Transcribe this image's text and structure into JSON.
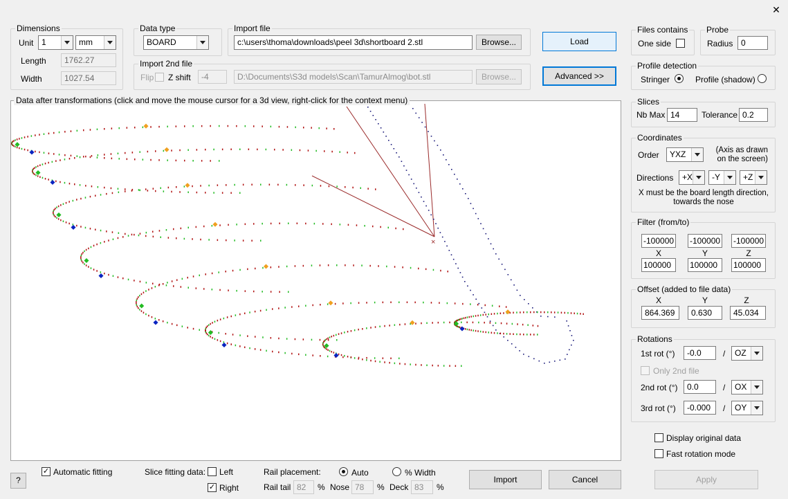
{
  "window": {
    "close_glyph": "✕"
  },
  "dimensions": {
    "legend": "Dimensions",
    "unit_label": "Unit",
    "unit_value": "1",
    "unit_mm": "mm",
    "length_label": "Length",
    "length_value": "1762.27",
    "width_label": "Width",
    "width_value": "1027.54"
  },
  "data_type": {
    "legend": "Data type",
    "value": "BOARD"
  },
  "import_file": {
    "legend": "Import file",
    "path": "c:\\users\\thoma\\downloads\\peel 3d\\shortboard 2.stl",
    "browse": "Browse..."
  },
  "import2": {
    "legend": "Import 2nd file",
    "flip_label": "Flip",
    "zshift_label": "Z shift",
    "zshift_value": "-4",
    "path": "D:\\Documents\\S3d models\\Scan\\TamurAlmog\\bot.stl",
    "browse": "Browse..."
  },
  "buttons": {
    "load": "Load",
    "advanced": "Advanced >>",
    "import": "Import",
    "cancel": "Cancel",
    "apply": "Apply",
    "help": "?"
  },
  "files_contains": {
    "legend": "Files contains",
    "one_side": "One side",
    "one_side_checked": false
  },
  "probe": {
    "legend": "Probe",
    "radius_label": "Radius",
    "radius_value": "0"
  },
  "profile_detection": {
    "legend": "Profile detection",
    "stringer": "Stringer",
    "shadow": "Profile (shadow)",
    "selected": "stringer"
  },
  "slices": {
    "legend": "Slices",
    "nbmax_label": "Nb Max",
    "nbmax_value": "14",
    "tolerance_label": "Tolerance",
    "tolerance_value": "0.2"
  },
  "coordinates": {
    "legend": "Coordinates",
    "order_label": "Order",
    "order_value": "YXZ",
    "axis_note": "(Axis as drawn\non the screen)",
    "directions_label": "Directions",
    "dir_x": "+X",
    "dir_y": "-Y",
    "dir_z": "+Z",
    "note": "X must be the board length direction,\ntowards the nose"
  },
  "filter": {
    "legend": "Filter (from/to)",
    "from": [
      "-100000",
      "-100000",
      "-100000"
    ],
    "axes": [
      "X",
      "Y",
      "Z"
    ],
    "to": [
      "100000",
      "100000",
      "100000"
    ]
  },
  "offset": {
    "legend": "Offset (added to file data)",
    "axes": [
      "X",
      "Y",
      "Z"
    ],
    "values": [
      "864.369",
      "0.630",
      "45.034"
    ]
  },
  "rotations": {
    "legend": "Rotations",
    "first_label": "1st rot (°)",
    "first_value": "-0.0",
    "first_axis": "OZ",
    "only2nd": "Only 2nd file",
    "second_label": "2nd rot (°)",
    "second_value": "0.0",
    "second_axis": "OX",
    "third_label": "3rd rot (°)",
    "third_value": "-0.000",
    "third_axis": "OY",
    "slash": "/"
  },
  "display_original": {
    "label": "Display original data",
    "checked": false
  },
  "fast_rotation": {
    "label": "Fast rotation mode",
    "checked": false
  },
  "view": {
    "caption": "Data after transformations (click and move the mouse cursor for a 3d view, right-click for the context menu)"
  },
  "bottom": {
    "auto_fit_label": "Automatic fitting",
    "auto_fit_checked": true,
    "slice_fit_label": "Slice fitting data:",
    "left_label": "Left",
    "left_checked": false,
    "right_label": "Right",
    "right_checked": true,
    "rail_placement_label": "Rail placement:",
    "auto_label": "Auto",
    "pct_width_label": "% Width",
    "rail_tail_label": "Rail tail",
    "rail_tail_value": "82",
    "nose_label": "Nose",
    "nose_value": "78",
    "deck_label": "Deck",
    "deck_value": "83",
    "pct": "%"
  },
  "colors": {
    "rail_red": "#b01010",
    "rail_green": "#22bb22",
    "marker_blue": "#0a24c0",
    "marker_orange": "#f0a020",
    "outline_navy": "#1a1a7a",
    "axis_line": "#9a2a2a"
  }
}
